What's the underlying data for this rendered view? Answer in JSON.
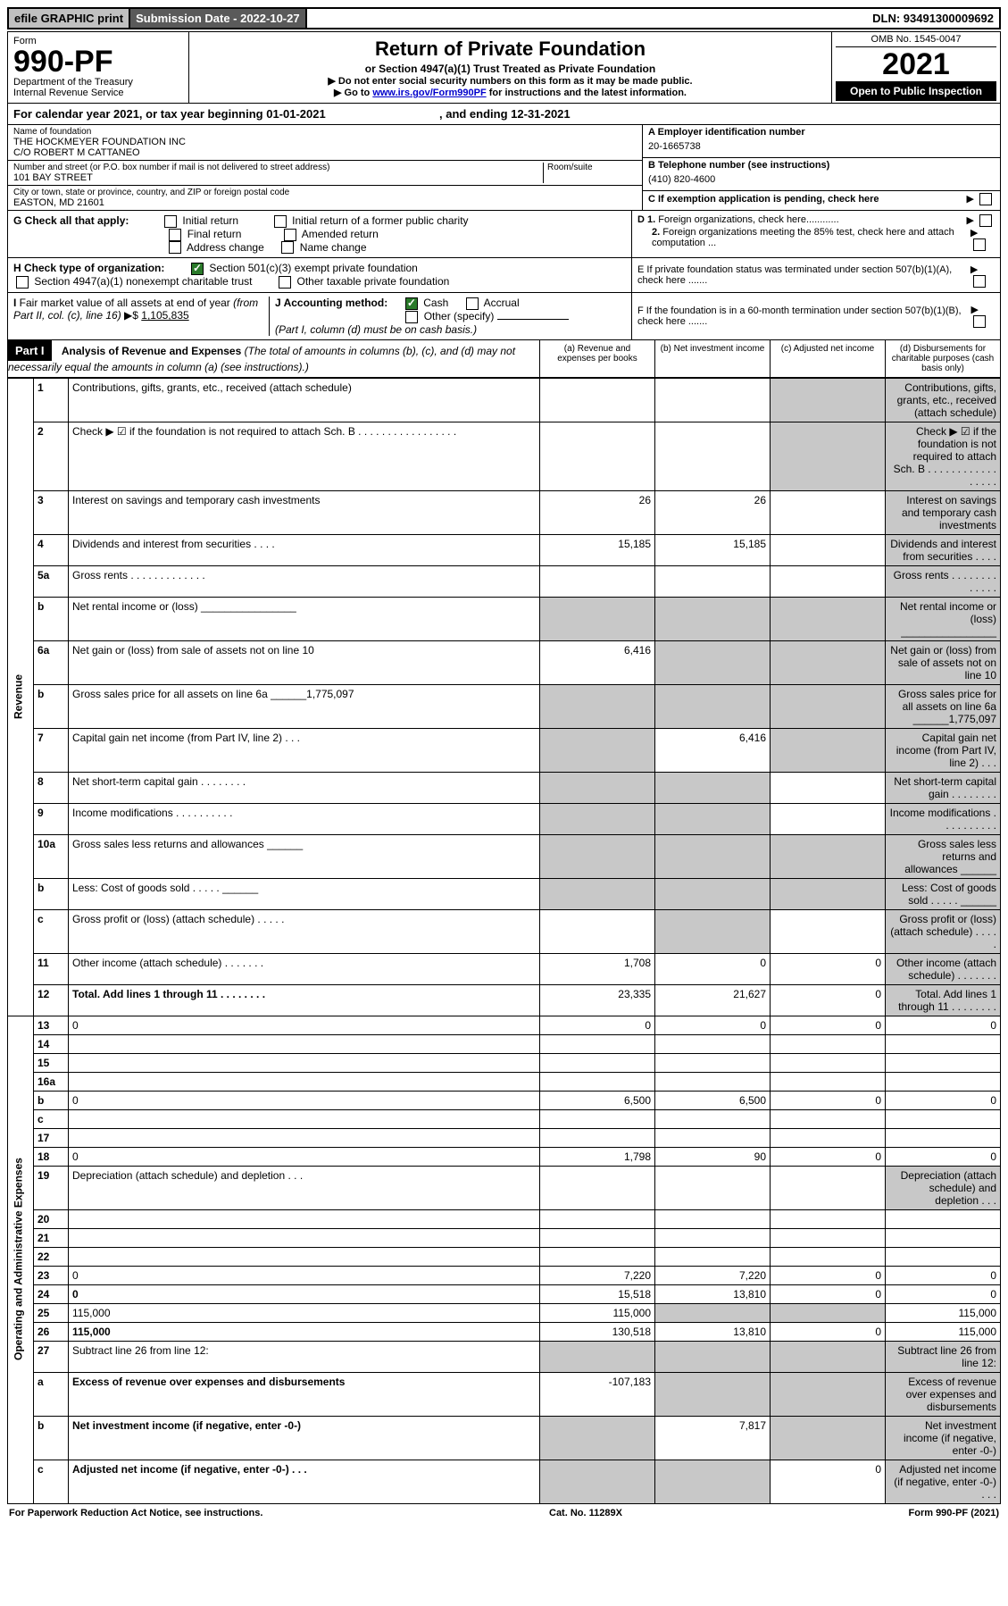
{
  "top": {
    "efile": "efile GRAPHIC print",
    "submission_label": "Submission Date - 2022-10-27",
    "dln": "DLN: 93491300009692"
  },
  "header": {
    "form_label": "Form",
    "form_number": "990-PF",
    "dept": "Department of the Treasury",
    "irs": "Internal Revenue Service",
    "title": "Return of Private Foundation",
    "subtitle": "or Section 4947(a)(1) Trust Treated as Private Foundation",
    "note1": "▶ Do not enter social security numbers on this form as it may be made public.",
    "note2_pre": "▶ Go to ",
    "note2_link": "www.irs.gov/Form990PF",
    "note2_post": " for instructions and the latest information.",
    "omb": "OMB No. 1545-0047",
    "year": "2021",
    "open": "Open to Public Inspection"
  },
  "calendar": {
    "text_a": "For calendar year 2021, or tax year beginning 01-01-2021",
    "text_b": ", and ending 12-31-2021"
  },
  "entity": {
    "name_label": "Name of foundation",
    "name1": "THE HOCKMEYER FOUNDATION INC",
    "name2": "C/O ROBERT M CATTANEO",
    "addr_label": "Number and street (or P.O. box number if mail is not delivered to street address)",
    "addr": "101 BAY STREET",
    "room_label": "Room/suite",
    "city_label": "City or town, state or province, country, and ZIP or foreign postal code",
    "city": "EASTON, MD  21601",
    "a_label": "A Employer identification number",
    "a_val": "20-1665738",
    "b_label": "B Telephone number (see instructions)",
    "b_val": "(410) 820-4600",
    "c_label": "C If exemption application is pending, check here"
  },
  "checks": {
    "g_label": "G Check all that apply:",
    "g_items": [
      "Initial return",
      "Initial return of a former public charity",
      "Final return",
      "Amended return",
      "Address change",
      "Name change"
    ],
    "h_label": "H Check type of organization:",
    "h1": "Section 501(c)(3) exempt private foundation",
    "h2": "Section 4947(a)(1) nonexempt charitable trust",
    "h3": "Other taxable private foundation",
    "i_label": "I Fair market value of all assets at end of year (from Part II, col. (c), line 16) ▶$ ",
    "i_val": "1,105,835",
    "j_label": "J Accounting method:",
    "j_items": [
      "Cash",
      "Accrual",
      "Other (specify)"
    ],
    "j_note": "(Part I, column (d) must be on cash basis.)",
    "d1": "D 1. Foreign organizations, check here............",
    "d2": "2. Foreign organizations meeting the 85% test, check here and attach computation ...",
    "e": "E  If private foundation status was terminated under section 507(b)(1)(A), check here .......",
    "f": "F  If the foundation is in a 60-month termination under section 507(b)(1)(B), check here .......",
    "arrow": "▶"
  },
  "part1": {
    "label": "Part I",
    "title": "Analysis of Revenue and Expenses",
    "note": " (The total of amounts in columns (b), (c), and (d) may not necessarily equal the amounts in column (a) (see instructions).)",
    "col_a": "(a)   Revenue and expenses per books",
    "col_b": "(b)   Net investment income",
    "col_c": "(c)   Adjusted net income",
    "col_d": "(d)   Disbursements for charitable purposes (cash basis only)"
  },
  "side_labels": {
    "revenue": "Revenue",
    "opex": "Operating and Administrative Expenses"
  },
  "rows": [
    {
      "n": "1",
      "d": "Contributions, gifts, grants, etc., received (attach schedule)",
      "a": "",
      "b": "",
      "c_s": true,
      "d_s": true
    },
    {
      "n": "2",
      "d": "Check ▶ ☑ if the foundation is not required to attach Sch. B   . . . . . . . . . . . . . . . . .",
      "a": "",
      "b": "",
      "c_s": true,
      "d_s": true,
      "all_shade": "abcd"
    },
    {
      "n": "3",
      "d": "Interest on savings and temporary cash investments",
      "a": "26",
      "b": "26",
      "c": "",
      "d_s": true
    },
    {
      "n": "4",
      "d": "Dividends and interest from securities   . . . .",
      "a": "15,185",
      "b": "15,185",
      "c": "",
      "d_s": true
    },
    {
      "n": "5a",
      "d": "Gross rents   . . . . . . . . . . . . .",
      "a": "",
      "b": "",
      "c": "",
      "d_s": true
    },
    {
      "n": "b",
      "d": "Net rental income or (loss)  ________________",
      "a_s": true,
      "b_s": true,
      "c_s": true,
      "d_s": true
    },
    {
      "n": "6a",
      "d": "Net gain or (loss) from sale of assets not on line 10",
      "a": "6,416",
      "b_s": true,
      "c_s": true,
      "d_s": true
    },
    {
      "n": "b",
      "d": "Gross sales price for all assets on line 6a ______1,775,097",
      "a_s": true,
      "b_s": true,
      "c_s": true,
      "d_s": true
    },
    {
      "n": "7",
      "d": "Capital gain net income (from Part IV, line 2)   . . .",
      "a_s": true,
      "b": "6,416",
      "c_s": true,
      "d_s": true
    },
    {
      "n": "8",
      "d": "Net short-term capital gain   . . . . . . . .",
      "a_s": true,
      "b_s": true,
      "c": "",
      "d_s": true
    },
    {
      "n": "9",
      "d": "Income modifications   . . . . . . . . . .",
      "a_s": true,
      "b_s": true,
      "c": "",
      "d_s": true
    },
    {
      "n": "10a",
      "d": "Gross sales less returns and allowances  ______",
      "a_s": true,
      "b_s": true,
      "c_s": true,
      "d_s": true
    },
    {
      "n": "b",
      "d": "Less: Cost of goods sold   . . . . .  ______",
      "a_s": true,
      "b_s": true,
      "c_s": true,
      "d_s": true
    },
    {
      "n": "c",
      "d": "Gross profit or (loss) (attach schedule)   . . . . .",
      "a": "",
      "b_s": true,
      "c": "",
      "d_s": true
    },
    {
      "n": "11",
      "d": "Other income (attach schedule)   . . . . . . .",
      "a": "1,708",
      "b": "0",
      "c": "0",
      "d_s": true
    },
    {
      "n": "12",
      "d": "Total. Add lines 1 through 11   . . . . . . . .",
      "a": "23,335",
      "b": "21,627",
      "c": "0",
      "d_s": true,
      "bold": true
    },
    {
      "n": "13",
      "d": "0",
      "a": "0",
      "b": "0",
      "c": "0"
    },
    {
      "n": "14",
      "d": "",
      "a": "",
      "b": "",
      "c": ""
    },
    {
      "n": "15",
      "d": "",
      "a": "",
      "b": "",
      "c": ""
    },
    {
      "n": "16a",
      "d": "",
      "a": "",
      "b": "",
      "c": ""
    },
    {
      "n": "b",
      "d": "0",
      "a": "6,500",
      "b": "6,500",
      "c": "0"
    },
    {
      "n": "c",
      "d": "",
      "a": "",
      "b": "",
      "c": ""
    },
    {
      "n": "17",
      "d": "",
      "a": "",
      "b": "",
      "c": ""
    },
    {
      "n": "18",
      "d": "0",
      "a": "1,798",
      "b": "90",
      "c": "0"
    },
    {
      "n": "19",
      "d": "Depreciation (attach schedule) and depletion   . . .",
      "a": "",
      "b": "",
      "c": "",
      "d_s": true
    },
    {
      "n": "20",
      "d": "",
      "a": "",
      "b": "",
      "c": ""
    },
    {
      "n": "21",
      "d": "",
      "a": "",
      "b": "",
      "c": ""
    },
    {
      "n": "22",
      "d": "",
      "a": "",
      "b": "",
      "c": ""
    },
    {
      "n": "23",
      "d": "0",
      "a": "7,220",
      "b": "7,220",
      "c": "0"
    },
    {
      "n": "24",
      "d": "0",
      "a": "15,518",
      "b": "13,810",
      "c": "0",
      "bold": true
    },
    {
      "n": "25",
      "d": "115,000",
      "a": "115,000",
      "b_s": true,
      "c_s": true
    },
    {
      "n": "26",
      "d": "115,000",
      "a": "130,518",
      "b": "13,810",
      "c": "0",
      "bold": true
    },
    {
      "n": "27",
      "d": "Subtract line 26 from line 12:",
      "a_s": true,
      "b_s": true,
      "c_s": true,
      "d_s": true
    },
    {
      "n": "a",
      "d": "Excess of revenue over expenses and disbursements",
      "a": "-107,183",
      "b_s": true,
      "c_s": true,
      "d_s": true,
      "bold": true
    },
    {
      "n": "b",
      "d": "Net investment income (if negative, enter -0-)",
      "a_s": true,
      "b": "7,817",
      "c_s": true,
      "d_s": true,
      "bold": true
    },
    {
      "n": "c",
      "d": "Adjusted net income (if negative, enter -0-)   . . .",
      "a_s": true,
      "b_s": true,
      "c": "0",
      "d_s": true,
      "bold": true
    }
  ],
  "footer": {
    "left": "For Paperwork Reduction Act Notice, see instructions.",
    "mid": "Cat. No. 11289X",
    "right": "Form 990-PF (2021)"
  }
}
